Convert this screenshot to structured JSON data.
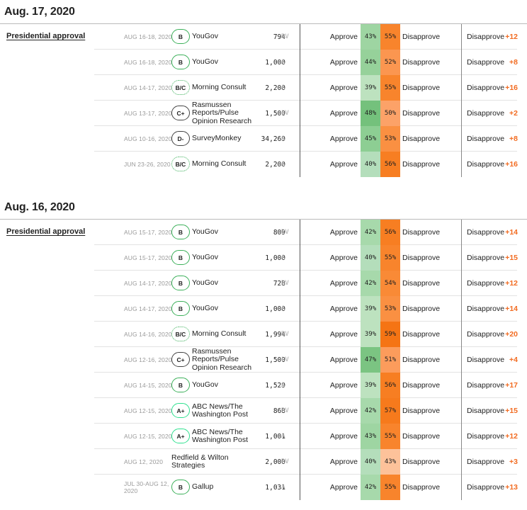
{
  "sections": [
    {
      "date": "Aug. 17, 2020",
      "label": "Presidential approval",
      "rows": [
        {
          "dates": "AUG 16-18, 2020",
          "grade": "B",
          "grade_style": "solid",
          "pollster": "YouGov",
          "sample": "794",
          "pop": "RV",
          "approve_label": "Approve",
          "approve": "43%",
          "disapprove": "55%",
          "disapprove_label": "Disapprove",
          "net_label": "Disapprove",
          "net": "+12",
          "approve_color": "#9ed5a2",
          "disapprove_color": "#f8842c"
        },
        {
          "dates": "AUG 16-18, 2020",
          "grade": "B",
          "grade_style": "solid",
          "pollster": "YouGov",
          "sample": "1,000",
          "pop": "A",
          "approve_label": "Approve",
          "approve": "44%",
          "disapprove": "52%",
          "disapprove_label": "Disapprove",
          "net_label": "Disapprove",
          "net": "+8",
          "approve_color": "#96d19a",
          "disapprove_color": "#fb9650"
        },
        {
          "dates": "AUG 14-17, 2020",
          "grade": "B/C",
          "grade_style": "dotted",
          "pollster": "Morning Consult",
          "sample": "2,200",
          "pop": "A",
          "approve_label": "Approve",
          "approve": "39%",
          "disapprove": "55%",
          "disapprove_label": "Disapprove",
          "net_label": "Disapprove",
          "net": "+16",
          "approve_color": "#bde2bf",
          "disapprove_color": "#f8842c"
        },
        {
          "dates": "AUG 13-17, 2020",
          "grade": "C+",
          "grade_style": "dark",
          "pollster": "Rasmussen Reports/Pulse Opinion Research",
          "sample": "1,500",
          "pop": "LV",
          "approve_label": "Approve",
          "approve": "48%",
          "disapprove": "50%",
          "disapprove_label": "Disapprove",
          "net_label": "Disapprove",
          "net": "+2",
          "approve_color": "#74c17c",
          "disapprove_color": "#fca268"
        },
        {
          "dates": "AUG 10-16, 2020",
          "grade": "D-",
          "grade_style": "dark",
          "pollster": "SurveyMonkey",
          "sample": "34,269",
          "pop": "A",
          "approve_label": "Approve",
          "approve": "45%",
          "disapprove": "53%",
          "disapprove_label": "Disapprove",
          "net_label": "Disapprove",
          "net": "+8",
          "approve_color": "#8dce93",
          "disapprove_color": "#fa9042"
        },
        {
          "dates": "JUN 23-26, 2020",
          "grade": "B/C",
          "grade_style": "dotted",
          "pollster": "Morning Consult",
          "sample": "2,200",
          "pop": "A",
          "approve_label": "Approve",
          "approve": "40%",
          "disapprove": "56%",
          "disapprove_label": "Disapprove",
          "net_label": "Disapprove",
          "net": "+16",
          "approve_color": "#b4debb",
          "disapprove_color": "#f77e22"
        }
      ]
    },
    {
      "date": "Aug. 16, 2020",
      "label": "Presidential approval",
      "rows": [
        {
          "dates": "AUG 15-17, 2020",
          "grade": "B",
          "grade_style": "solid",
          "pollster": "YouGov",
          "sample": "809",
          "pop": "RV",
          "approve_label": "Approve",
          "approve": "42%",
          "disapprove": "56%",
          "disapprove_label": "Disapprove",
          "net_label": "Disapprove",
          "net": "+14",
          "approve_color": "#a7d9ab",
          "disapprove_color": "#f77e22"
        },
        {
          "dates": "AUG 15-17, 2020",
          "grade": "B",
          "grade_style": "solid",
          "pollster": "YouGov",
          "sample": "1,000",
          "pop": "A",
          "approve_label": "Approve",
          "approve": "40%",
          "disapprove": "55%",
          "disapprove_label": "Disapprove",
          "net_label": "Disapprove",
          "net": "+15",
          "approve_color": "#b4debb",
          "disapprove_color": "#f8842c"
        },
        {
          "dates": "AUG 14-17, 2020",
          "grade": "B",
          "grade_style": "solid",
          "pollster": "YouGov",
          "sample": "728",
          "pop": "RV",
          "approve_label": "Approve",
          "approve": "42%",
          "disapprove": "54%",
          "disapprove_label": "Disapprove",
          "net_label": "Disapprove",
          "net": "+12",
          "approve_color": "#a7d9ab",
          "disapprove_color": "#f98a36"
        },
        {
          "dates": "AUG 14-17, 2020",
          "grade": "B",
          "grade_style": "solid",
          "pollster": "YouGov",
          "sample": "1,000",
          "pop": "A",
          "approve_label": "Approve",
          "approve": "39%",
          "disapprove": "53%",
          "disapprove_label": "Disapprove",
          "net_label": "Disapprove",
          "net": "+14",
          "approve_color": "#bde2bf",
          "disapprove_color": "#fa9042"
        },
        {
          "dates": "AUG 14-16, 2020",
          "grade": "B/C",
          "grade_style": "dotted",
          "pollster": "Morning Consult",
          "sample": "1,994",
          "pop": "RV",
          "approve_label": "Approve",
          "approve": "39%",
          "disapprove": "59%",
          "disapprove_label": "Disapprove",
          "net_label": "Disapprove",
          "net": "+20",
          "approve_color": "#bde2bf",
          "disapprove_color": "#f57414"
        },
        {
          "dates": "AUG 12-16, 2020",
          "grade": "C+",
          "grade_style": "dark",
          "pollster": "Rasmussen Reports/Pulse Opinion Research",
          "sample": "1,500",
          "pop": "LV",
          "approve_label": "Approve",
          "approve": "47%",
          "disapprove": "51%",
          "disapprove_label": "Disapprove",
          "net_label": "Disapprove",
          "net": "+4",
          "approve_color": "#7bc482",
          "disapprove_color": "#fc9c5c"
        },
        {
          "dates": "AUG 14-15, 2020",
          "grade": "B",
          "grade_style": "solid",
          "pollster": "YouGov",
          "sample": "1,529",
          "pop": "A",
          "approve_label": "Approve",
          "approve": "39%",
          "disapprove": "56%",
          "disapprove_label": "Disapprove",
          "net_label": "Disapprove",
          "net": "+17",
          "approve_color": "#bde2bf",
          "disapprove_color": "#f77e22"
        },
        {
          "dates": "AUG 12-15, 2020",
          "grade": "A+",
          "grade_style": "bright",
          "pollster": "ABC News/The Washington Post",
          "sample": "868",
          "pop": "RV",
          "approve_label": "Approve",
          "approve": "42%",
          "disapprove": "57%",
          "disapprove_label": "Disapprove",
          "net_label": "Disapprove",
          "net": "+15",
          "approve_color": "#a7d9ab",
          "disapprove_color": "#f67a1c"
        },
        {
          "dates": "AUG 12-15, 2020",
          "grade": "A+",
          "grade_style": "bright",
          "pollster": "ABC News/The Washington Post",
          "sample": "1,001",
          "pop": "A",
          "approve_label": "Approve",
          "approve": "43%",
          "disapprove": "55%",
          "disapprove_label": "Disapprove",
          "net_label": "Disapprove",
          "net": "+12",
          "approve_color": "#9ed5a2",
          "disapprove_color": "#f8842c"
        },
        {
          "dates": "AUG 12, 2020",
          "grade": "",
          "grade_style": "none",
          "pollster": "Redfield & Wilton Strategies",
          "sample": "2,000",
          "pop": "RV",
          "approve_label": "Approve",
          "approve": "40%",
          "disapprove": "43%",
          "disapprove_label": "Disapprove",
          "net_label": "Disapprove",
          "net": "+3",
          "approve_color": "#b4debb",
          "disapprove_color": "#fdc29a"
        },
        {
          "dates": "JUL 30-AUG 12, 2020",
          "grade": "B",
          "grade_style": "solid",
          "pollster": "Gallup",
          "sample": "1,031",
          "pop": "A",
          "approve_label": "Approve",
          "approve": "42%",
          "disapprove": "55%",
          "disapprove_label": "Disapprove",
          "net_label": "Disapprove",
          "net": "+13",
          "approve_color": "#a7d9ab",
          "disapprove_color": "#f8842c"
        }
      ]
    }
  ]
}
